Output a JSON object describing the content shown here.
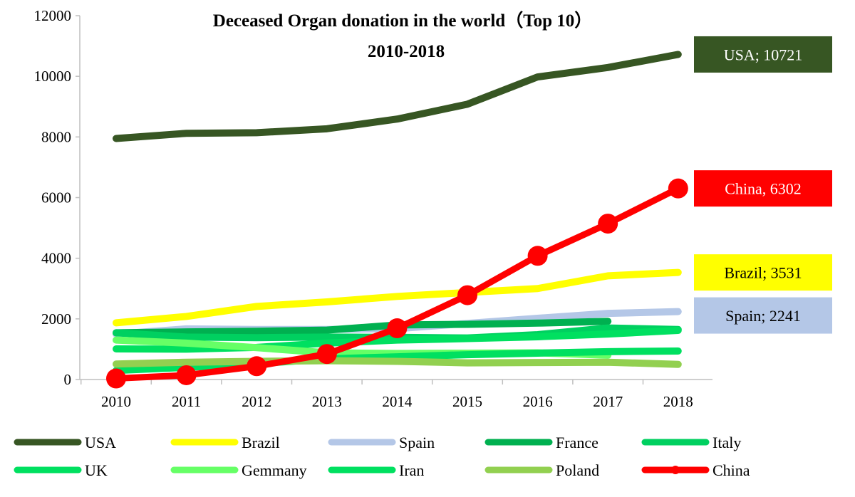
{
  "chart_data": {
    "type": "line",
    "title": "Deceased Organ donation in the world（Top 10）",
    "subtitle": "2010-2018",
    "xlabel": "",
    "ylabel": "",
    "x": [
      2010,
      2011,
      2012,
      2013,
      2014,
      2015,
      2016,
      2017,
      2018
    ],
    "x_tick_labels": [
      "2010",
      "2011",
      "2012",
      "2013",
      "2014",
      "2015",
      "2016",
      "2017",
      "2018"
    ],
    "ylim": [
      0,
      12000
    ],
    "y_ticks": [
      0,
      2000,
      4000,
      6000,
      8000,
      10000,
      12000
    ],
    "y_tick_labels": [
      "0",
      "2000",
      "4000",
      "6000",
      "8000",
      "10000",
      "12000"
    ],
    "grid": false,
    "legend_position": "bottom",
    "series": [
      {
        "name": "USA",
        "color": "#375623",
        "values": [
          7950,
          8120,
          8140,
          8270,
          8590,
          9080,
          9980,
          10290,
          10721
        ],
        "markers": false
      },
      {
        "name": "Brazil",
        "color": "#ffff00",
        "values": [
          1870,
          2080,
          2410,
          2560,
          2740,
          2870,
          3000,
          3420,
          3531
        ],
        "markers": false
      },
      {
        "name": "Spain",
        "color": "#b4c7e7",
        "values": [
          1500,
          1670,
          1650,
          1650,
          1680,
          1850,
          2020,
          2180,
          2241
        ],
        "markers": false
      },
      {
        "name": "France",
        "color": "#00b050",
        "values": [
          1540,
          1570,
          1590,
          1630,
          1800,
          1820,
          1860,
          1920,
          null
        ],
        "markers": false
      },
      {
        "name": "Italy",
        "color": "#00d060",
        "values": [
          1540,
          1400,
          1380,
          1400,
          1390,
          1370,
          1480,
          1700,
          1650
        ],
        "markers": false
      },
      {
        "name": "UK",
        "color": "#00e060",
        "values": [
          1010,
          1000,
          1060,
          1200,
          1300,
          1350,
          1410,
          1500,
          1620
        ],
        "markers": false
      },
      {
        "name": "Gemmany",
        "color": "#66ff66",
        "values": [
          1300,
          1200,
          1050,
          880,
          860,
          870,
          880,
          800,
          null
        ],
        "markers": false
      },
      {
        "name": "Iran",
        "color": "#00e060",
        "values": [
          300,
          400,
          520,
          680,
          750,
          820,
          870,
          920,
          940
        ],
        "markers": false
      },
      {
        "name": "Poland",
        "color": "#92d050",
        "values": [
          510,
          570,
          600,
          620,
          600,
          550,
          560,
          570,
          500
        ],
        "markers": false
      },
      {
        "name": "China",
        "color": "#ff0000",
        "values": [
          34,
          142,
          440,
          840,
          1690,
          2780,
          4080,
          5140,
          6302
        ],
        "markers": true
      }
    ],
    "callouts": [
      {
        "text": "USA; 10721",
        "series": "USA",
        "bg": "#375623",
        "color": "#ffffff"
      },
      {
        "text": "China, 6302",
        "series": "China",
        "bg": "#ff0000",
        "color": "#ffffff"
      },
      {
        "text": "Brazil; 3531",
        "series": "Brazil",
        "bg": "#ffff00",
        "color": "#000000"
      },
      {
        "text": "Spain; 2241",
        "series": "Spain",
        "bg": "#b4c7e7",
        "color": "#000000"
      }
    ]
  }
}
